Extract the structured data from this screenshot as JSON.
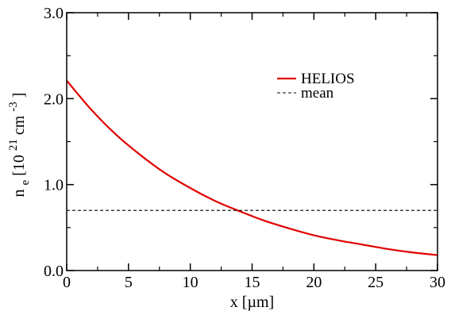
{
  "chart_data": {
    "type": "line",
    "xlabel": "x [µm]",
    "ylabel": {
      "base": "n",
      "base_sub": "e",
      "bracket_open": " [10",
      "exp": "21",
      "unit": " cm",
      "unit_exp": "-3",
      "bracket_close": "]"
    },
    "xlim": [
      0,
      30
    ],
    "ylim": [
      0.0,
      3.0
    ],
    "xticks": [
      0,
      5,
      10,
      15,
      20,
      25,
      30
    ],
    "xtick_labels": [
      "0",
      "5",
      "10",
      "15",
      "20",
      "25",
      "30"
    ],
    "yticks": [
      0.0,
      1.0,
      2.0,
      3.0
    ],
    "ytick_labels": [
      "0.0",
      "1.0",
      "2.0",
      "3.0"
    ],
    "grid": false,
    "legend_position": "top-right",
    "series": [
      {
        "name": "HELIOS",
        "color": "#e00000",
        "style": "solid",
        "x": [
          0,
          2,
          4,
          6,
          8,
          10,
          12,
          14,
          16,
          18,
          20,
          22,
          24,
          26,
          28,
          30
        ],
        "y": [
          2.21,
          1.87,
          1.58,
          1.34,
          1.13,
          0.96,
          0.81,
          0.69,
          0.58,
          0.49,
          0.41,
          0.35,
          0.3,
          0.25,
          0.21,
          0.18
        ]
      },
      {
        "name": "mean",
        "color": "#000000",
        "style": "dashed",
        "x": [
          0,
          30
        ],
        "y": [
          0.7,
          0.7
        ]
      }
    ]
  }
}
